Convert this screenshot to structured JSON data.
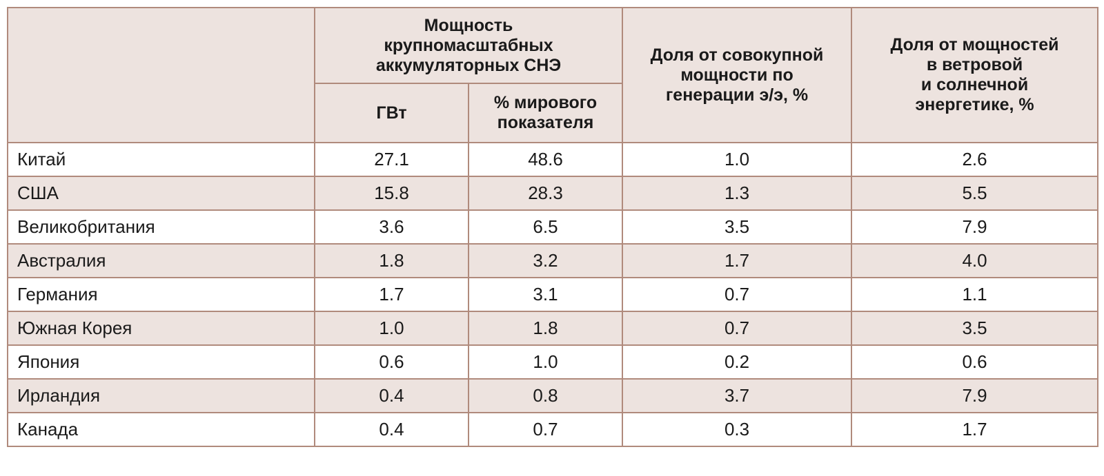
{
  "table": {
    "header": {
      "group_title": [
        "Мощность",
        "крупномасштабных",
        "аккумуляторных СНЭ"
      ],
      "sub_gw": "ГВт",
      "sub_world_share": [
        "% мирового",
        "показателя"
      ],
      "share_total_generation": [
        "Доля от совокупной",
        "мощности по",
        "генерации э/э, %"
      ],
      "share_wind_solar": [
        "Доля от мощностей",
        "в ветровой",
        "и солнечной",
        "энергетике, %"
      ]
    },
    "rows": [
      {
        "country": "Китай",
        "gw": "27.1",
        "world_pct": "48.6",
        "gen_share": "1.0",
        "ws_share": "2.6"
      },
      {
        "country": "США",
        "gw": "15.8",
        "world_pct": "28.3",
        "gen_share": "1.3",
        "ws_share": "5.5"
      },
      {
        "country": "Великобритания",
        "gw": "3.6",
        "world_pct": "6.5",
        "gen_share": "3.5",
        "ws_share": "7.9"
      },
      {
        "country": "Австралия",
        "gw": "1.8",
        "world_pct": "3.2",
        "gen_share": "1.7",
        "ws_share": "4.0"
      },
      {
        "country": "Германия",
        "gw": "1.7",
        "world_pct": "3.1",
        "gen_share": "0.7",
        "ws_share": "1.1"
      },
      {
        "country": "Южная Корея",
        "gw": "1.0",
        "world_pct": "1.8",
        "gen_share": "0.7",
        "ws_share": "3.5"
      },
      {
        "country": "Япония",
        "gw": "0.6",
        "world_pct": "1.0",
        "gen_share": "0.2",
        "ws_share": "0.6"
      },
      {
        "country": "Ирландия",
        "gw": "0.4",
        "world_pct": "0.8",
        "gen_share": "3.7",
        "ws_share": "7.9"
      },
      {
        "country": "Канада",
        "gw": "0.4",
        "world_pct": "0.7",
        "gen_share": "0.3",
        "ws_share": "1.7"
      }
    ]
  },
  "colors": {
    "border": "#b08a7c",
    "shaded_background": "#ede3df",
    "plain_background": "#ffffff"
  }
}
